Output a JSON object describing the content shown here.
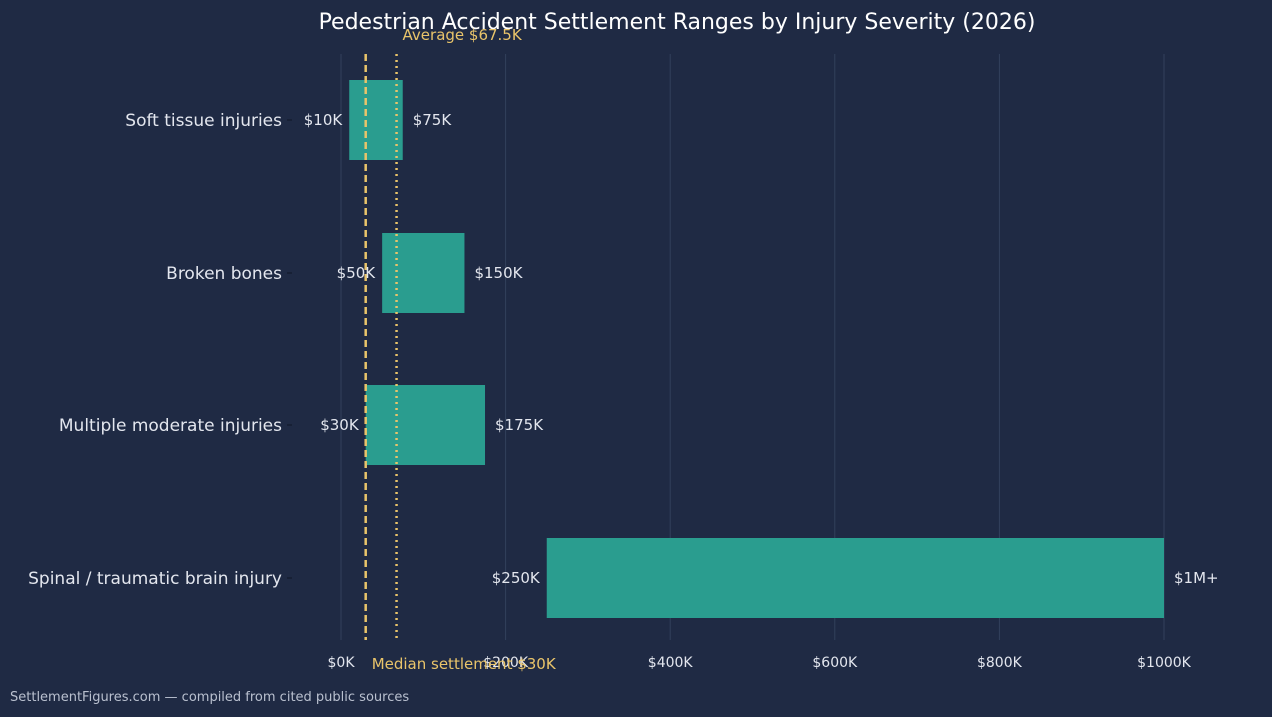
{
  "chart_data": {
    "type": "bar",
    "orientation": "horizontal",
    "title": "Pedestrian Accident Settlement Ranges by Injury Severity (2026)",
    "xlabel": "",
    "ylabel": "",
    "xlim": [
      0,
      1100000
    ],
    "x_ticks": [
      {
        "value": 0,
        "label": "$0K"
      },
      {
        "value": 200000,
        "label": "$200K"
      },
      {
        "value": 400000,
        "label": "$400K"
      },
      {
        "value": 600000,
        "label": "$600K"
      },
      {
        "value": 800000,
        "label": "$800K"
      },
      {
        "value": 1000000,
        "label": "$1000K"
      }
    ],
    "grid": "vertical",
    "categories": [
      "Soft tissue injuries",
      "Broken bones",
      "Multiple moderate injuries",
      "Spinal / traumatic brain injury"
    ],
    "ranges": [
      {
        "low": 10000,
        "high": 75000,
        "low_label": "$10K",
        "high_label": "$75K"
      },
      {
        "low": 50000,
        "high": 150000,
        "low_label": "$50K",
        "high_label": "$150K"
      },
      {
        "low": 30000,
        "high": 175000,
        "low_label": "$30K",
        "high_label": "$175K"
      },
      {
        "low": 250000,
        "high": 1000000,
        "low_label": "$250K",
        "high_label": "$1M+"
      }
    ],
    "reference_lines": [
      {
        "value": 30000,
        "label": "Median settlement $30K",
        "style": "dashed",
        "label_position": "bottom"
      },
      {
        "value": 67500,
        "label": "Average $67.5K",
        "style": "dotted",
        "label_position": "top"
      }
    ],
    "colors": {
      "background": "#1f2a44",
      "bar": "#2a9d8f",
      "reference": "#e9c46a",
      "text": "#e3e6ee",
      "grid": "#33405c"
    }
  },
  "footer": {
    "source": "SettlementFigures.com — compiled from cited public sources"
  }
}
